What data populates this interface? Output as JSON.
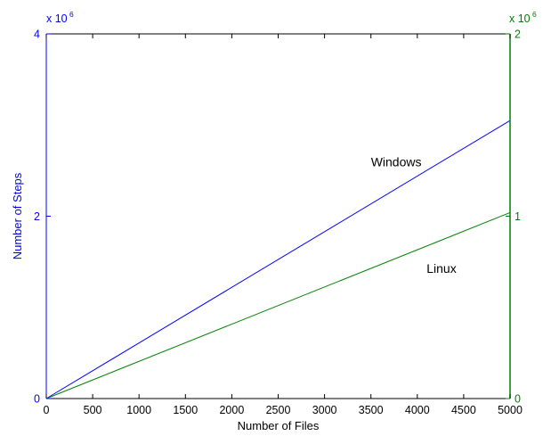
{
  "chart_data": {
    "type": "line",
    "xlabel": "Number of Files",
    "xlim": [
      0,
      5000
    ],
    "x_ticks": [
      "0",
      "500",
      "1000",
      "1500",
      "2000",
      "2500",
      "3000",
      "3500",
      "4000",
      "4500",
      "5000"
    ],
    "left_axis": {
      "label": "Number of Steps",
      "exponent_base": "x 10",
      "exponent_power": "6",
      "ylim": [
        0,
        4
      ],
      "ticks": [
        "0",
        "2",
        "4"
      ],
      "color": "#0000ff"
    },
    "right_axis": {
      "exponent_base": "x 10",
      "exponent_power": "6",
      "ylim": [
        0,
        2
      ],
      "ticks": [
        "0",
        "1",
        "2"
      ],
      "color": "#008000"
    },
    "series": [
      {
        "name": "Windows",
        "axis": "left",
        "color": "#0000ff",
        "x": [
          0,
          5000
        ],
        "y": [
          0,
          3.05
        ]
      },
      {
        "name": "Linux",
        "axis": "right",
        "color": "#008000",
        "x": [
          0,
          5000
        ],
        "y": [
          0,
          1.02
        ]
      }
    ],
    "annotations": [
      {
        "text": "Windows",
        "x": 3500,
        "y_left": 2.55
      },
      {
        "text": "Linux",
        "x": 4100,
        "y_left": 1.38
      }
    ],
    "grid": false,
    "legend": "none"
  }
}
